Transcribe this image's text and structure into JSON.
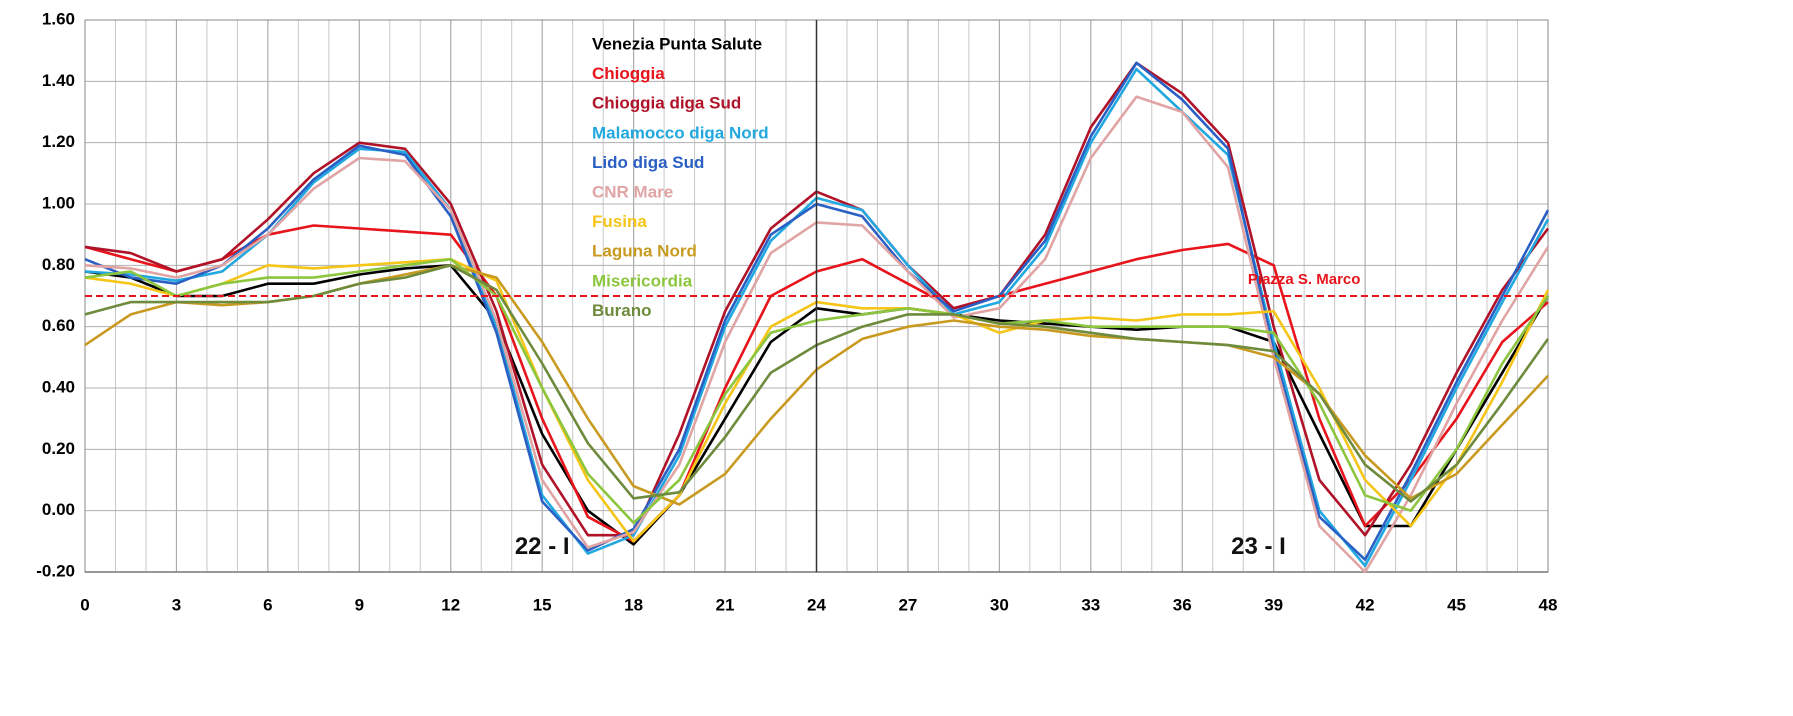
{
  "chart_data": {
    "type": "line",
    "x": [
      0,
      1.5,
      3,
      4.5,
      6,
      7.5,
      9,
      10.5,
      12,
      13.5,
      15,
      16.5,
      18,
      19.5,
      21,
      22.5,
      24,
      25.5,
      27,
      28.5,
      30,
      31.5,
      33,
      34.5,
      36,
      37.5,
      39,
      40.5,
      42,
      43.5,
      45,
      46.5,
      48
    ],
    "series": [
      {
        "name": "Venezia Punta Salute",
        "color": "#000000",
        "values": [
          0.78,
          0.76,
          0.7,
          0.7,
          0.74,
          0.74,
          0.77,
          0.79,
          0.8,
          0.62,
          0.25,
          0.0,
          -0.11,
          0.05,
          0.3,
          0.55,
          0.66,
          0.64,
          0.66,
          0.64,
          0.62,
          0.61,
          0.6,
          0.59,
          0.6,
          0.6,
          0.55,
          0.25,
          -0.05,
          -0.05,
          0.2,
          0.45,
          0.7
        ]
      },
      {
        "name": "Chioggia",
        "color": "#e8141c",
        "values": [
          0.86,
          0.82,
          0.78,
          0.82,
          0.9,
          0.93,
          0.92,
          0.91,
          0.9,
          0.7,
          0.3,
          -0.02,
          -0.1,
          0.05,
          0.4,
          0.7,
          0.78,
          0.82,
          0.74,
          0.66,
          0.7,
          0.74,
          0.78,
          0.82,
          0.85,
          0.87,
          0.8,
          0.3,
          -0.05,
          0.1,
          0.3,
          0.55,
          0.68
        ]
      },
      {
        "name": "Chioggia diga Sud",
        "color": "#b01228",
        "values": [
          0.86,
          0.84,
          0.78,
          0.82,
          0.95,
          1.1,
          1.2,
          1.18,
          1.0,
          0.65,
          0.15,
          -0.08,
          -0.08,
          0.25,
          0.65,
          0.92,
          1.04,
          0.98,
          0.8,
          0.66,
          0.7,
          0.9,
          1.25,
          1.46,
          1.36,
          1.2,
          0.6,
          0.1,
          -0.08,
          0.15,
          0.45,
          0.72,
          0.92
        ]
      },
      {
        "name": "Malamocco diga Nord",
        "color": "#22a8e0",
        "values": [
          0.78,
          0.77,
          0.75,
          0.78,
          0.9,
          1.07,
          1.18,
          1.17,
          0.98,
          0.6,
          0.05,
          -0.14,
          -0.08,
          0.18,
          0.6,
          0.88,
          1.02,
          0.98,
          0.8,
          0.64,
          0.68,
          0.86,
          1.2,
          1.44,
          1.3,
          1.16,
          0.55,
          0.0,
          -0.18,
          0.1,
          0.4,
          0.68,
          0.95
        ]
      },
      {
        "name": "Lido diga Sud",
        "color": "#2a5fc4",
        "values": [
          0.82,
          0.76,
          0.74,
          0.8,
          0.92,
          1.08,
          1.19,
          1.16,
          0.96,
          0.58,
          0.03,
          -0.13,
          -0.06,
          0.2,
          0.62,
          0.9,
          1.0,
          0.96,
          0.78,
          0.65,
          0.7,
          0.88,
          1.22,
          1.46,
          1.34,
          1.18,
          0.52,
          -0.02,
          -0.16,
          0.12,
          0.42,
          0.7,
          0.98
        ]
      },
      {
        "name": "CNR Mare",
        "color": "#e0a4a4",
        "values": [
          0.8,
          0.79,
          0.76,
          0.8,
          0.9,
          1.05,
          1.15,
          1.14,
          0.98,
          0.62,
          0.1,
          -0.12,
          -0.07,
          0.15,
          0.55,
          0.84,
          0.94,
          0.93,
          0.78,
          0.63,
          0.66,
          0.82,
          1.15,
          1.35,
          1.3,
          1.12,
          0.5,
          -0.05,
          -0.2,
          0.05,
          0.35,
          0.62,
          0.86
        ]
      },
      {
        "name": "Fusina",
        "color": "#f5c518",
        "values": [
          0.76,
          0.74,
          0.7,
          0.74,
          0.8,
          0.79,
          0.8,
          0.81,
          0.82,
          0.75,
          0.4,
          0.1,
          -0.1,
          0.05,
          0.35,
          0.6,
          0.68,
          0.66,
          0.66,
          0.64,
          0.58,
          0.62,
          0.63,
          0.62,
          0.64,
          0.64,
          0.65,
          0.4,
          0.1,
          -0.05,
          0.15,
          0.42,
          0.72
        ]
      },
      {
        "name": "Laguna Nord",
        "color": "#c89a20",
        "values": [
          0.54,
          0.64,
          0.68,
          0.67,
          0.68,
          0.7,
          0.74,
          0.77,
          0.8,
          0.76,
          0.55,
          0.3,
          0.08,
          0.02,
          0.12,
          0.3,
          0.46,
          0.56,
          0.6,
          0.62,
          0.6,
          0.59,
          0.57,
          0.56,
          0.55,
          0.54,
          0.5,
          0.38,
          0.18,
          0.04,
          0.12,
          0.28,
          0.44
        ]
      },
      {
        "name": "Misericordia",
        "color": "#8cc63f",
        "values": [
          0.76,
          0.78,
          0.7,
          0.74,
          0.76,
          0.76,
          0.78,
          0.8,
          0.82,
          0.7,
          0.4,
          0.12,
          -0.04,
          0.1,
          0.38,
          0.58,
          0.62,
          0.64,
          0.66,
          0.64,
          0.61,
          0.62,
          0.6,
          0.6,
          0.6,
          0.6,
          0.58,
          0.35,
          0.05,
          0.0,
          0.2,
          0.48,
          0.7
        ]
      },
      {
        "name": "Burano",
        "color": "#6e8b3d",
        "values": [
          0.64,
          0.68,
          0.68,
          0.68,
          0.68,
          0.7,
          0.74,
          0.76,
          0.8,
          0.72,
          0.48,
          0.22,
          0.04,
          0.06,
          0.24,
          0.45,
          0.54,
          0.6,
          0.64,
          0.64,
          0.61,
          0.6,
          0.58,
          0.56,
          0.55,
          0.54,
          0.52,
          0.38,
          0.15,
          0.03,
          0.15,
          0.35,
          0.56
        ]
      }
    ],
    "xlim": [
      0,
      48
    ],
    "xticks": [
      0,
      3,
      6,
      9,
      12,
      15,
      18,
      21,
      24,
      27,
      30,
      33,
      36,
      39,
      42,
      45,
      48
    ],
    "ylim": [
      -0.2,
      1.6
    ],
    "yticks": [
      {
        "value": -0.2,
        "label": "-0.20"
      },
      {
        "value": 0,
        "label": "0.00"
      },
      {
        "value": 0.2,
        "label": "0.20"
      },
      {
        "value": 0.4,
        "label": "0.40"
      },
      {
        "value": 0.6,
        "label": "0.60"
      },
      {
        "value": 0.8,
        "label": "0.80"
      },
      {
        "value": 1.0,
        "label": "1.00"
      },
      {
        "value": 1.2,
        "label": "1.20"
      },
      {
        "value": 1.4,
        "label": "1.40"
      },
      {
        "value": 1.6,
        "label": "1.60"
      }
    ],
    "grid": true,
    "reference_line": {
      "value": 0.7,
      "label": "Piazza S. Marco",
      "color": "#e8141c"
    },
    "vline": 24,
    "annotations": [
      {
        "text": "22 - I",
        "x": 15,
        "y": -0.12
      },
      {
        "text": "23 - I",
        "x": 38.5,
        "y": -0.12
      }
    ]
  }
}
